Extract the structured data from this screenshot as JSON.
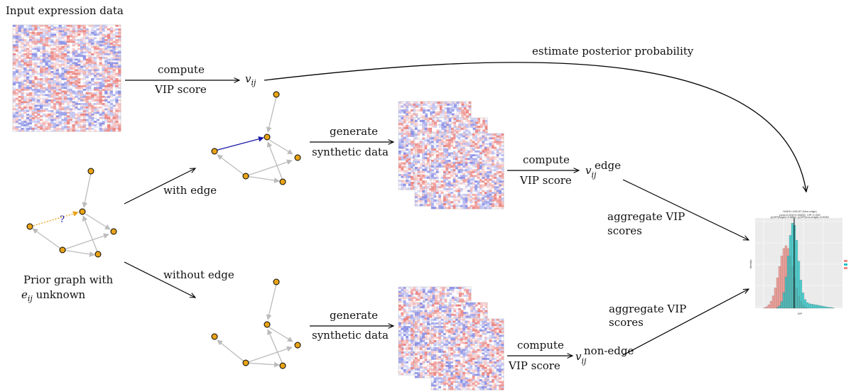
{
  "labels": {
    "input_data": "Input expression data",
    "compute": "compute",
    "vip_score": "VIP score",
    "v": "v",
    "ij": "ij",
    "edge_sup": "edge",
    "nonedge_sup": "non-edge",
    "estimate_posterior": "estimate posterior probability",
    "generate": "generate",
    "synthetic_data": "synthetic data",
    "with_edge": "with edge",
    "without_edge": "without edge",
    "prior_graph_line1": "Prior graph with",
    "e": "e",
    "unknown": " unknown",
    "question": "?",
    "aggregate_vip": "aggregate VIP",
    "scores": "scores"
  },
  "colors": {
    "node_fill": "#e8a317",
    "edge_gray": "#bbbbbb",
    "edge_blue": "#1a1aa6",
    "edge_orange": "#e8a317",
    "heat_red": "#e8736e",
    "heat_blue": "#7a80e0",
    "hist_red": "#f08a80",
    "hist_teal": "#1fc6c6"
  },
  "histogram": {
    "title": "HADH->MCAT (Non-edge)",
    "subtitle1": "pval=0.000+0.00000, VIP>1.000",
    "subtitle2": "p(VIP|edge)=0.8860, p(VIP|non-edge)=0.0062",
    "xlabel": "VIP",
    "ylabel": "density"
  }
}
